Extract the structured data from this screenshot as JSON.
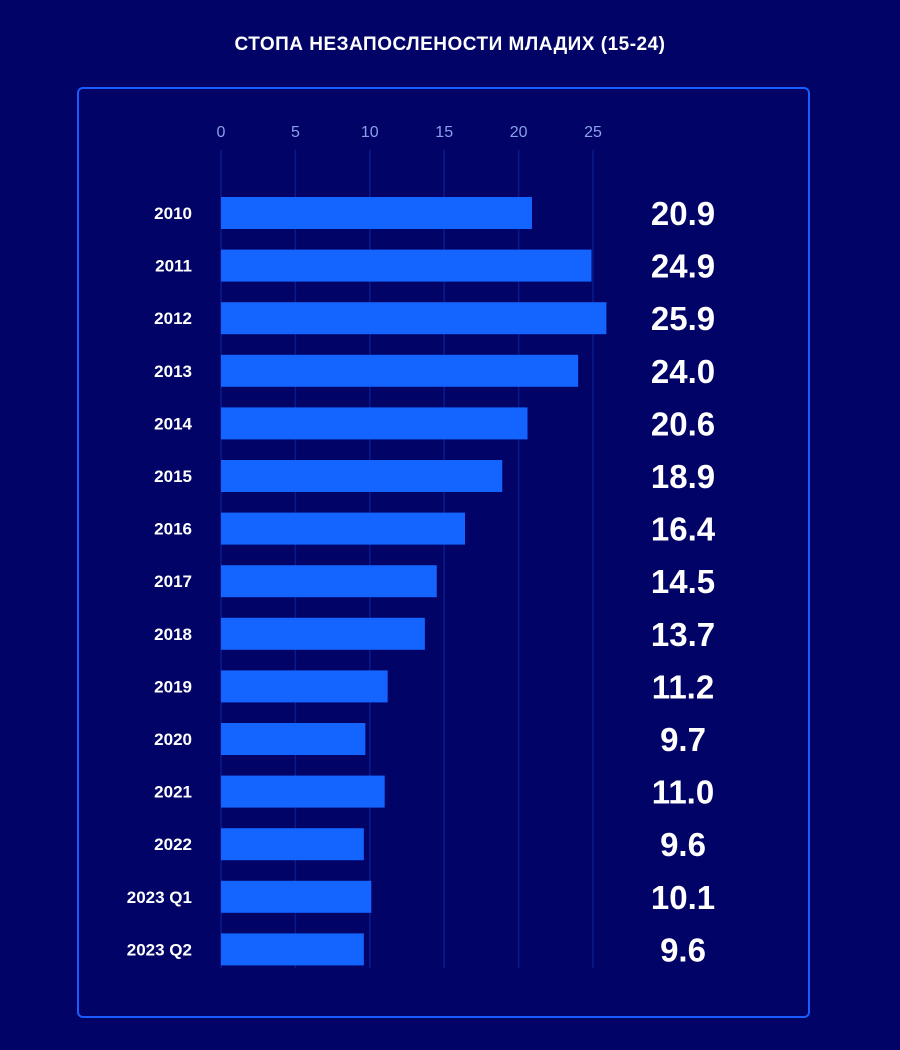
{
  "chart_data": {
    "type": "bar",
    "orientation": "horizontal",
    "title": "СТОПА НЕЗАПОСЛЕНОСТИ МЛАДИХ (15-24)",
    "categories": [
      "2010",
      "2011",
      "2012",
      "2013",
      "2014",
      "2015",
      "2016",
      "2017",
      "2018",
      "2019",
      "2020",
      "2021",
      "2022",
      "2023 Q1",
      "2023 Q2"
    ],
    "values": [
      20.9,
      24.9,
      25.9,
      24.0,
      20.6,
      18.9,
      16.4,
      14.5,
      13.7,
      11.2,
      9.7,
      11.0,
      9.6,
      10.1,
      9.6
    ],
    "value_labels": [
      "20.9",
      "24.9",
      "25.9",
      "24.0",
      "20.6",
      "18.9",
      "16.4",
      "14.5",
      "13.7",
      "11.2",
      "9.7",
      "11.0",
      "9.6",
      "10.1",
      "9.6"
    ],
    "x_ticks": [
      "0",
      "5",
      "10",
      "15",
      "20",
      "25"
    ],
    "tick_values": [
      0,
      5,
      10,
      15,
      20,
      25
    ],
    "xlim": [
      0,
      25
    ],
    "xlabel": "",
    "ylabel": "",
    "grid": true,
    "legend": "none",
    "colors": {
      "background": "#010466",
      "bar": "#1464ff",
      "border": "#1a5cff",
      "gridline": "#0b1a8a",
      "tick_text": "#8aa0e8",
      "label_text": "#ffffff"
    }
  }
}
